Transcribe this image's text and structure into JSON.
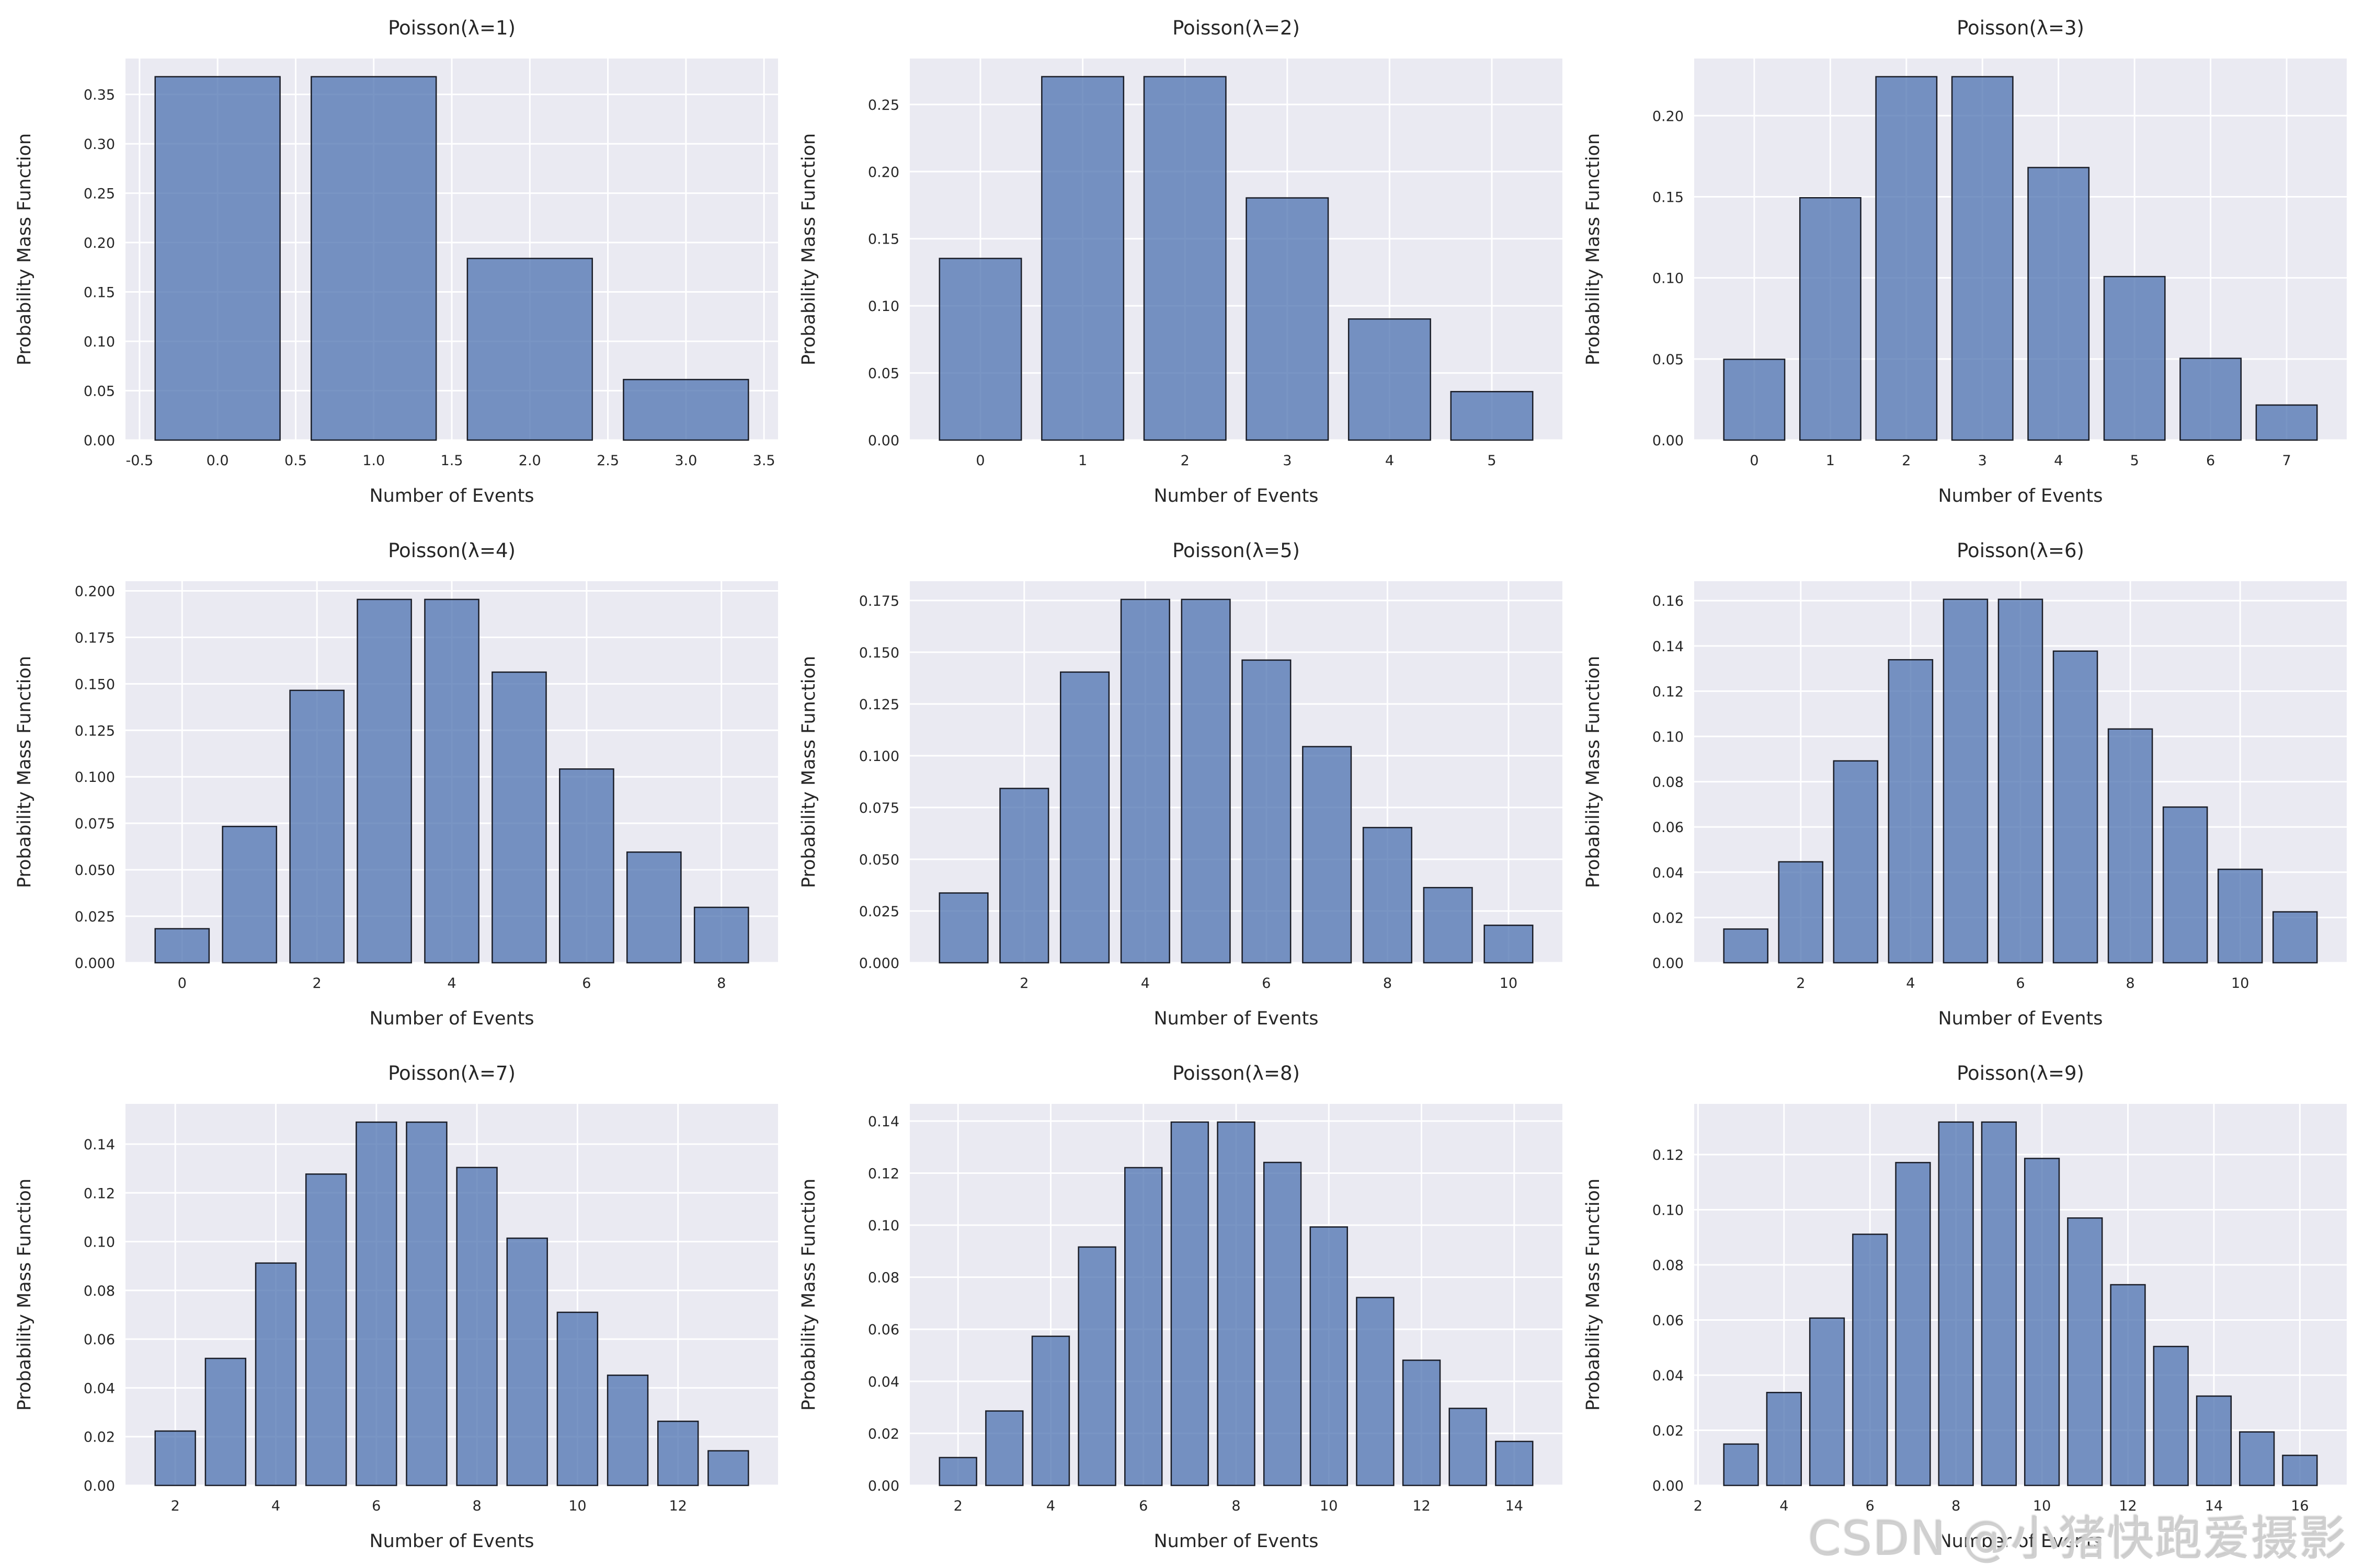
{
  "page": {
    "background": "#ffffff"
  },
  "watermark": {
    "text": "CSDN @小猪快跑爱摄影"
  },
  "style": {
    "axes_background": "#eaeaf2",
    "grid_color": "#ffffff",
    "bar_fill": "#4c72b0",
    "bar_fill_opacity": 0.75,
    "bar_edge": "#1a1d27",
    "text_color": "#262626",
    "bar_width": 0.8
  },
  "chart_data": {
    "type": "bar",
    "layout": "3x3-grid",
    "grid": true,
    "xlabel": "Number of Events",
    "ylabel": "Probability Mass Function",
    "charts": [
      {
        "title": "Poisson(λ=1)",
        "lambda": 1,
        "k": [
          0,
          1,
          2,
          3
        ],
        "pmf": [
          0.3679,
          0.3679,
          0.1839,
          0.0613
        ],
        "ymax": 0.3863,
        "yticks": [
          0.0,
          0.05,
          0.1,
          0.15,
          0.2,
          0.25,
          0.3,
          0.35
        ],
        "ytick_decimals": 2,
        "xticks": [
          -0.5,
          0.0,
          0.5,
          1.0,
          1.5,
          2.0,
          2.5,
          3.0,
          3.5
        ],
        "xtick_decimals": 1
      },
      {
        "title": "Poisson(λ=2)",
        "lambda": 2,
        "k": [
          0,
          1,
          2,
          3,
          4,
          5
        ],
        "pmf": [
          0.1353,
          0.2707,
          0.2707,
          0.1804,
          0.0902,
          0.0361
        ],
        "ymax": 0.2842,
        "yticks": [
          0.0,
          0.05,
          0.1,
          0.15,
          0.2,
          0.25
        ],
        "ytick_decimals": 2,
        "xticks": [
          0,
          1,
          2,
          3,
          4,
          5
        ],
        "xtick_decimals": 0
      },
      {
        "title": "Poisson(λ=3)",
        "lambda": 3,
        "k": [
          0,
          1,
          2,
          3,
          4,
          5,
          6,
          7
        ],
        "pmf": [
          0.0498,
          0.1494,
          0.224,
          0.224,
          0.168,
          0.1008,
          0.0504,
          0.0216
        ],
        "ymax": 0.2352,
        "yticks": [
          0.0,
          0.05,
          0.1,
          0.15,
          0.2
        ],
        "ytick_decimals": 2,
        "xticks": [
          0,
          1,
          2,
          3,
          4,
          5,
          6,
          7
        ],
        "xtick_decimals": 0
      },
      {
        "title": "Poisson(λ=4)",
        "lambda": 4,
        "k": [
          0,
          1,
          2,
          3,
          4,
          5,
          6,
          7,
          8
        ],
        "pmf": [
          0.0183,
          0.0733,
          0.1465,
          0.1954,
          0.1954,
          0.1563,
          0.1042,
          0.0595,
          0.0298
        ],
        "ymax": 0.2052,
        "yticks": [
          0.0,
          0.025,
          0.05,
          0.075,
          0.1,
          0.125,
          0.15,
          0.175,
          0.2
        ],
        "ytick_decimals": 3,
        "xticks": [
          0,
          2,
          4,
          6,
          8
        ],
        "xtick_decimals": 0
      },
      {
        "title": "Poisson(λ=5)",
        "lambda": 5,
        "k": [
          1,
          2,
          3,
          4,
          5,
          6,
          7,
          8,
          9,
          10
        ],
        "pmf": [
          0.0337,
          0.0842,
          0.1404,
          0.1755,
          0.1755,
          0.1462,
          0.1044,
          0.0653,
          0.0363,
          0.0181
        ],
        "ymax": 0.1843,
        "yticks": [
          0.0,
          0.025,
          0.05,
          0.075,
          0.1,
          0.125,
          0.15,
          0.175
        ],
        "ytick_decimals": 3,
        "xticks": [
          2,
          4,
          6,
          8,
          10
        ],
        "xtick_decimals": 0
      },
      {
        "title": "Poisson(λ=6)",
        "lambda": 6,
        "k": [
          1,
          2,
          3,
          4,
          5,
          6,
          7,
          8,
          9,
          10,
          11
        ],
        "pmf": [
          0.0149,
          0.0446,
          0.0892,
          0.1339,
          0.1606,
          0.1606,
          0.1377,
          0.1033,
          0.0688,
          0.0413,
          0.0225
        ],
        "ymax": 0.1686,
        "yticks": [
          0.0,
          0.02,
          0.04,
          0.06,
          0.08,
          0.1,
          0.12,
          0.14,
          0.16
        ],
        "ytick_decimals": 2,
        "xticks": [
          2,
          4,
          6,
          8,
          10
        ],
        "xtick_decimals": 0
      },
      {
        "title": "Poisson(λ=7)",
        "lambda": 7,
        "k": [
          2,
          3,
          4,
          5,
          6,
          7,
          8,
          9,
          10,
          11,
          12,
          13
        ],
        "pmf": [
          0.0223,
          0.0521,
          0.0912,
          0.1277,
          0.149,
          0.149,
          0.1304,
          0.1014,
          0.071,
          0.0452,
          0.0263,
          0.0142
        ],
        "ymax": 0.1565,
        "yticks": [
          0.0,
          0.02,
          0.04,
          0.06,
          0.08,
          0.1,
          0.12,
          0.14
        ],
        "ytick_decimals": 2,
        "xticks": [
          2,
          4,
          6,
          8,
          10,
          12
        ],
        "xtick_decimals": 0
      },
      {
        "title": "Poisson(λ=8)",
        "lambda": 8,
        "k": [
          2,
          3,
          4,
          5,
          6,
          7,
          8,
          9,
          10,
          11,
          12,
          13,
          14
        ],
        "pmf": [
          0.0107,
          0.0286,
          0.0573,
          0.0916,
          0.1221,
          0.1396,
          0.1396,
          0.1241,
          0.0993,
          0.0722,
          0.0481,
          0.0296,
          0.0169
        ],
        "ymax": 0.1466,
        "yticks": [
          0.0,
          0.02,
          0.04,
          0.06,
          0.08,
          0.1,
          0.12,
          0.14
        ],
        "ytick_decimals": 2,
        "xticks": [
          2,
          4,
          6,
          8,
          10,
          12,
          14
        ],
        "xtick_decimals": 0
      },
      {
        "title": "Poisson(λ=9)",
        "lambda": 9,
        "k": [
          3,
          4,
          5,
          6,
          7,
          8,
          9,
          10,
          11,
          12,
          13,
          14,
          15,
          16
        ],
        "pmf": [
          0.015,
          0.0337,
          0.0607,
          0.0911,
          0.1171,
          0.1318,
          0.1318,
          0.1186,
          0.097,
          0.0728,
          0.0504,
          0.0324,
          0.0194,
          0.0109
        ],
        "ymax": 0.1384,
        "yticks": [
          0.0,
          0.02,
          0.04,
          0.06,
          0.08,
          0.1,
          0.12
        ],
        "ytick_decimals": 2,
        "xticks": [
          2,
          4,
          6,
          8,
          10,
          12,
          14,
          16
        ],
        "xtick_decimals": 0
      }
    ]
  }
}
